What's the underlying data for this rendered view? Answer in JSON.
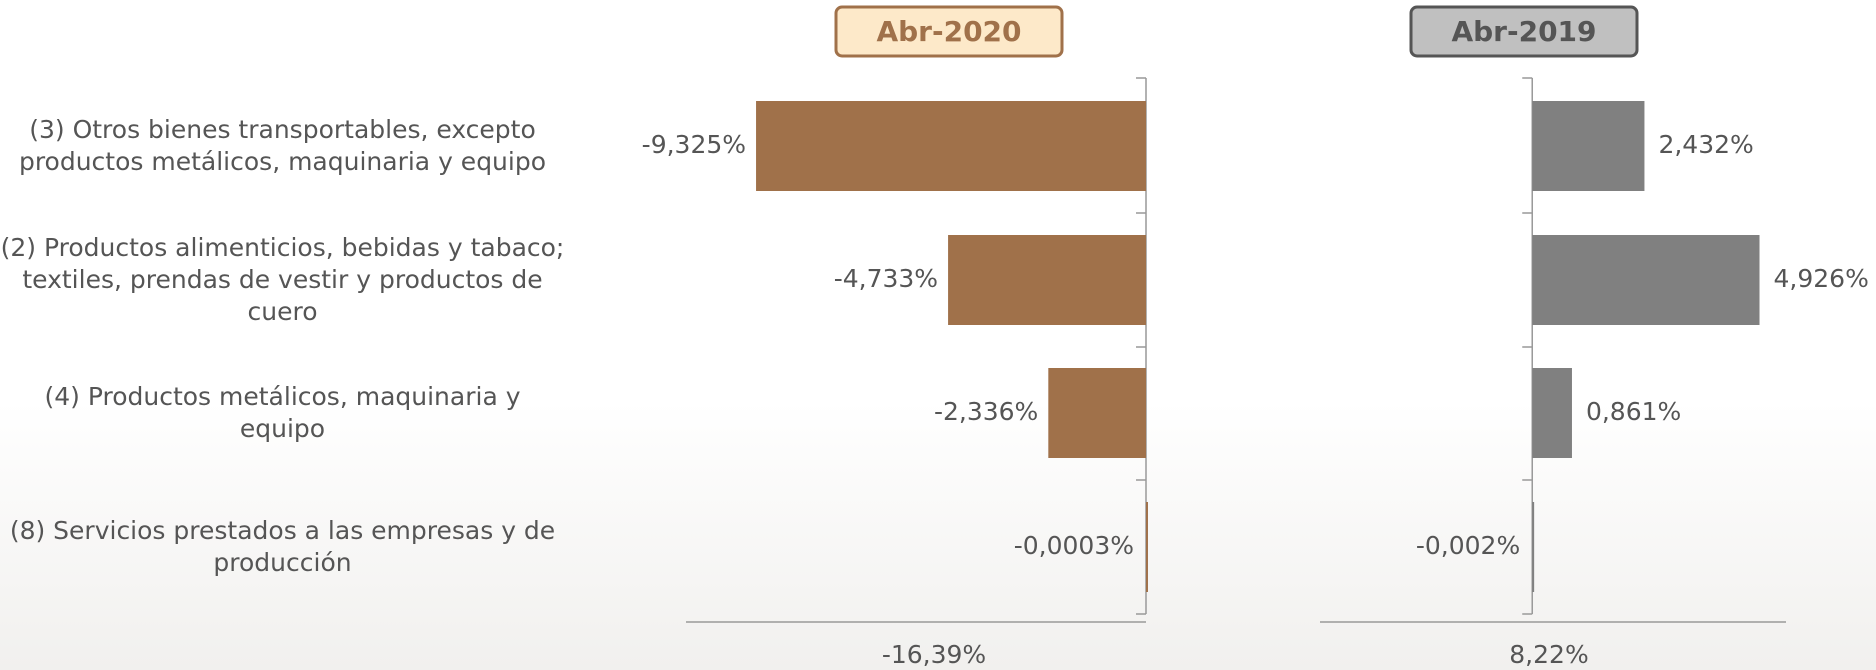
{
  "categories": [
    "(3) Otros bienes transportables, excepto productos metálicos, maquinaria y equipo",
    "(2) Productos alimenticios, bebidas y tabaco; textiles, prendas de vestir y productos de cuero",
    "(4) Productos metálicos, maquinaria y equipo",
    "(8) Servicios prestados a las empresas y de producción"
  ],
  "chart_data": [
    {
      "type": "bar",
      "orientation": "horizontal",
      "title": "Abr-2020",
      "values": [
        -9.325,
        -4.733,
        -2.336,
        -0.0003
      ],
      "value_labels": [
        "-9,325%",
        "-4,733%",
        "-2,336%",
        "-0,0003%"
      ],
      "color": "#a0714a",
      "xlim": [
        -11,
        0
      ],
      "total_label": "-16,39%"
    },
    {
      "type": "bar",
      "orientation": "horizontal",
      "title": "Abr-2019",
      "values": [
        2.432,
        4.926,
        0.861,
        -0.002
      ],
      "value_labels": [
        "2,432%",
        "4,926%",
        "0,861%",
        "-0,002%"
      ],
      "color": "#808080",
      "xlim": [
        -4.6,
        5.5
      ],
      "total_label": "8,22%"
    }
  ]
}
